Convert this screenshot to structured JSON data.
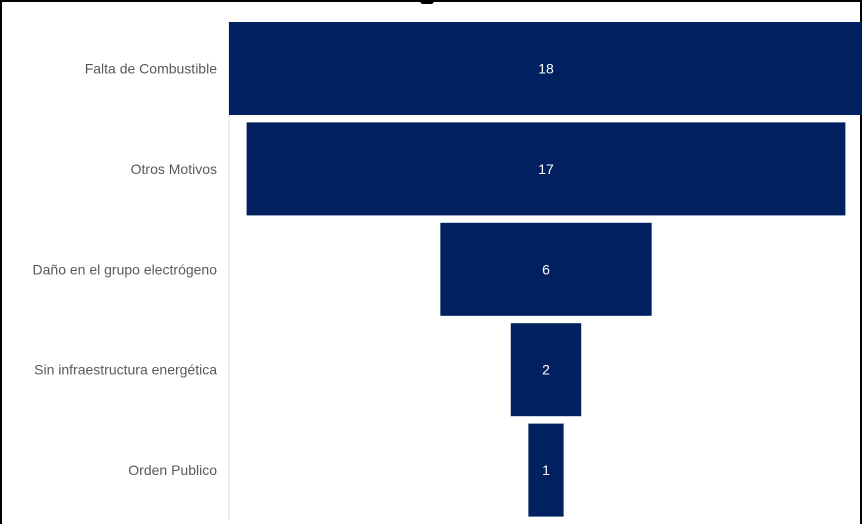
{
  "chart_data": {
    "type": "bar",
    "orientation": "funnel",
    "categories": [
      "Falta de Combustible",
      "Otros Motivos",
      "Daño en el grupo electrógeno",
      "Sin infraestructura energética",
      "Orden Publico"
    ],
    "values": [
      18,
      17,
      6,
      2,
      1
    ],
    "bar_color": "#002060",
    "value_label_color": "#FFFFFF",
    "category_label_color": "#595959",
    "grid": false,
    "legend": "none"
  }
}
